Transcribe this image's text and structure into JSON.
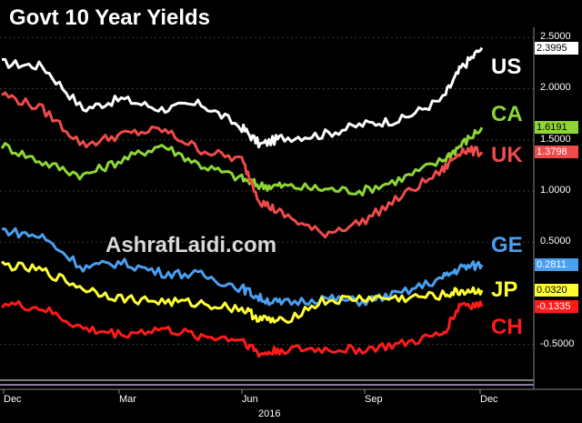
{
  "chart_data": {
    "type": "line",
    "title": "Govt 10 Year Yields",
    "watermark": "AshrafLaidi.com",
    "x_ticks": [
      "Dec",
      "Mar",
      "Jun",
      "Sep",
      "Dec"
    ],
    "year_label": "2016",
    "y_ticks": [
      "2.5000",
      "2.0000",
      "1.5000",
      "1.0000",
      "0.5000",
      "-0.5000"
    ],
    "ylim": [
      -0.85,
      2.6
    ],
    "x": [
      "2015-12-01",
      "2016-01-01",
      "2016-02-01",
      "2016-03-01",
      "2016-04-01",
      "2016-05-01",
      "2016-06-01",
      "2016-06-15",
      "2016-07-01",
      "2016-08-01",
      "2016-09-01",
      "2016-10-01",
      "2016-11-01",
      "2016-11-15",
      "2016-12-01"
    ],
    "series": [
      {
        "name": "US",
        "color": "#ffffff",
        "last_value": "2.3995",
        "values": [
          2.25,
          2.22,
          1.8,
          1.9,
          1.8,
          1.85,
          1.62,
          1.45,
          1.52,
          1.55,
          1.65,
          1.7,
          1.9,
          2.2,
          2.4
        ]
      },
      {
        "name": "CA",
        "color": "#8ed636",
        "last_value": "1.6191",
        "values": [
          1.45,
          1.28,
          1.15,
          1.3,
          1.45,
          1.25,
          1.12,
          1.05,
          1.05,
          1.02,
          1.0,
          1.12,
          1.3,
          1.45,
          1.62
        ]
      },
      {
        "name": "UK",
        "color": "#f04a4a",
        "last_value": "1.3798",
        "values": [
          1.95,
          1.8,
          1.45,
          1.55,
          1.6,
          1.4,
          1.3,
          0.9,
          0.78,
          0.58,
          0.7,
          0.95,
          1.2,
          1.4,
          1.38
        ]
      },
      {
        "name": "GE",
        "color": "#4a9ff0",
        "last_value": "0.2811",
        "values": [
          0.62,
          0.55,
          0.25,
          0.3,
          0.2,
          0.18,
          0.05,
          -0.05,
          -0.1,
          -0.05,
          -0.08,
          0.0,
          0.15,
          0.25,
          0.28
        ]
      },
      {
        "name": "JP",
        "color": "#ffff33",
        "last_value": "0.0320",
        "values": [
          0.28,
          0.22,
          0.05,
          -0.05,
          -0.08,
          -0.1,
          -0.15,
          -0.25,
          -0.28,
          -0.08,
          -0.05,
          -0.05,
          -0.02,
          0.02,
          0.03
        ]
      },
      {
        "name": "CH",
        "color": "#ff1a1a",
        "last_value": "-0.1335",
        "values": [
          -0.1,
          -0.15,
          -0.35,
          -0.4,
          -0.35,
          -0.42,
          -0.45,
          -0.6,
          -0.55,
          -0.55,
          -0.55,
          -0.5,
          -0.4,
          -0.1,
          -0.13
        ]
      }
    ]
  }
}
